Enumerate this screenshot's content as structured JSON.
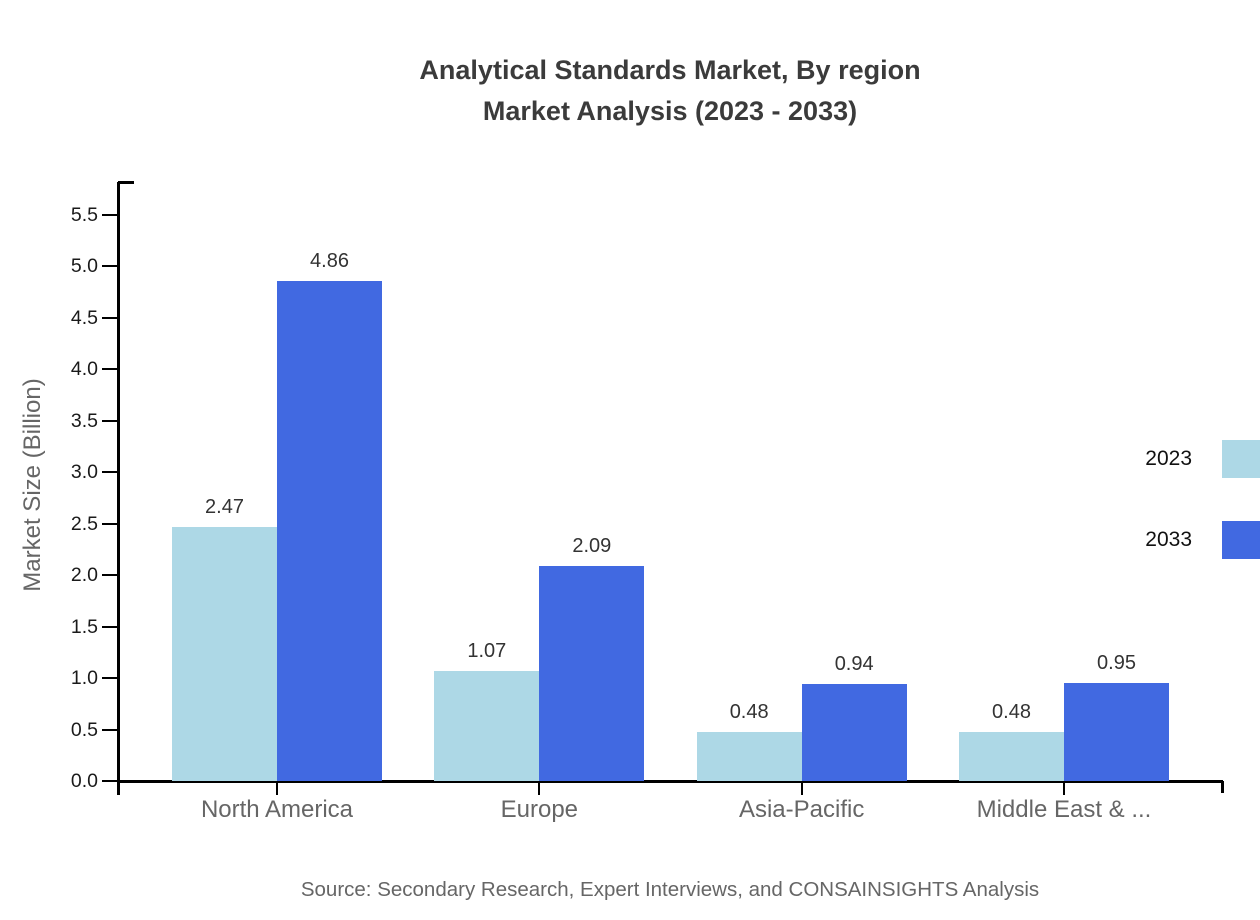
{
  "title": {
    "line1": "Analytical Standards Market, By region",
    "line2": "Market Analysis (2023 - 2033)"
  },
  "source": "Source: Secondary Research, Expert Interviews, and CONSAINSIGHTS Analysis",
  "legend": {
    "items": [
      {
        "label": "2023",
        "color": "#ADD8E6"
      },
      {
        "label": "2033",
        "color": "#4169E1"
      }
    ]
  },
  "chart_data": {
    "type": "bar",
    "title": "Analytical Standards Market, By region — Market Analysis (2023 - 2033)",
    "categories": [
      "North America",
      "Europe",
      "Asia-Pacific",
      "Middle East & ..."
    ],
    "series": [
      {
        "name": "2023",
        "color": "#ADD8E6",
        "values": [
          2.47,
          1.07,
          0.48,
          0.48
        ]
      },
      {
        "name": "2033",
        "color": "#4169E1",
        "values": [
          4.86,
          2.09,
          0.94,
          0.95
        ]
      }
    ],
    "xlabel": "",
    "ylabel": "Market Size (Billion)",
    "ylim": [
      0.0,
      5.5
    ],
    "ytick_step": 0.5,
    "grid": false,
    "legend_position": "top-right",
    "value_labels": true,
    "value_label_decimals": 2,
    "background": "#ffffff"
  }
}
